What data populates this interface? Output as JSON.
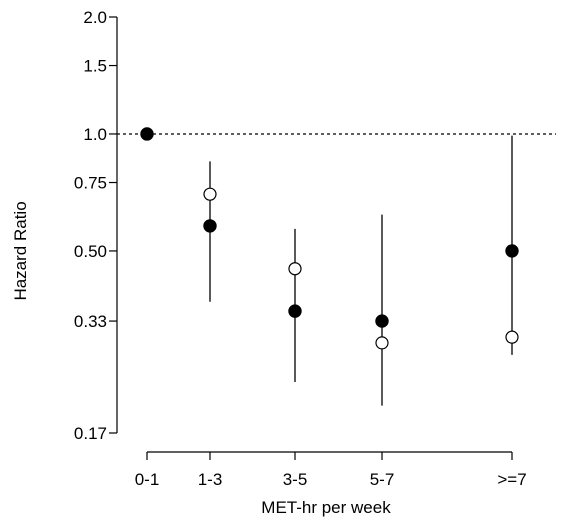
{
  "chart_data": {
    "type": "scatter",
    "xlabel": "MET-hr per week",
    "ylabel": "Hazard Ratio",
    "categories": [
      "0-1",
      "1-3",
      "3-5",
      "5-7",
      ">=7"
    ],
    "y_scale": "log",
    "ylim": [
      0.17,
      2.0
    ],
    "yticks": [
      {
        "value": 0.17,
        "label": "0.17"
      },
      {
        "value": 0.33,
        "label": "0.33"
      },
      {
        "value": 0.5,
        "label": "0.50"
      },
      {
        "value": 0.75,
        "label": "0.75"
      },
      {
        "value": 1.0,
        "label": "1.0"
      },
      {
        "value": 1.5,
        "label": "1.5"
      },
      {
        "value": 2.0,
        "label": "2.0"
      }
    ],
    "reference_line": {
      "value": 1.0,
      "style": "dotted"
    },
    "series": [
      {
        "marker": "filled-circle",
        "values": [
          1.0,
          0.58,
          0.35,
          0.33,
          0.5
        ],
        "ci_low": [
          null,
          0.37,
          0.23,
          0.2,
          0.27
        ],
        "ci_high": [
          null,
          0.85,
          0.57,
          0.62,
          0.99
        ]
      },
      {
        "marker": "open-circle",
        "values": [
          null,
          0.7,
          0.45,
          0.29,
          0.3
        ],
        "ci_low": [],
        "ci_high": []
      }
    ],
    "colors": {
      "axis": "#000000",
      "point": "#000000",
      "open_point_fill": "#ffffff"
    }
  }
}
